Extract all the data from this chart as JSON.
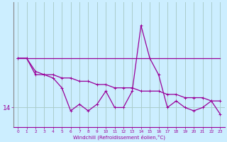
{
  "background_color": "#cceeff",
  "grid_color": "#aacccc",
  "line_color": "#990099",
  "xlabel": "Windchill (Refroidissement éolien,°C)",
  "x_ticks": [
    0,
    1,
    2,
    3,
    4,
    5,
    6,
    7,
    8,
    9,
    10,
    11,
    12,
    13,
    14,
    15,
    16,
    17,
    18,
    19,
    20,
    21,
    22,
    23
  ],
  "series1_y": [
    15.5,
    15.5,
    15.1,
    15.0,
    15.0,
    14.9,
    14.9,
    14.8,
    14.8,
    14.7,
    14.7,
    14.6,
    14.6,
    14.6,
    14.5,
    14.5,
    14.5,
    14.4,
    14.4,
    14.3,
    14.3,
    14.3,
    14.2,
    14.2
  ],
  "series2_y": [
    15.5,
    15.5,
    15.0,
    15.0,
    14.9,
    14.6,
    13.9,
    14.1,
    13.9,
    14.1,
    14.5,
    14.0,
    14.0,
    14.5,
    16.5,
    15.5,
    15.0,
    14.0,
    14.2,
    14.0,
    13.9,
    14.0,
    14.2,
    13.8
  ],
  "series3_y": [
    15.5,
    15.5,
    15.5,
    15.5,
    15.5,
    15.5,
    15.5,
    15.5,
    15.5,
    15.5,
    15.5,
    15.5,
    15.5,
    15.5,
    15.5,
    15.5,
    15.5,
    15.5,
    15.5,
    15.5,
    15.5,
    15.5,
    15.5,
    15.5
  ],
  "ytick_val": 14.0,
  "ytick_label": "14",
  "ylim": [
    13.4,
    17.2
  ],
  "xlim": [
    -0.5,
    23.5
  ]
}
